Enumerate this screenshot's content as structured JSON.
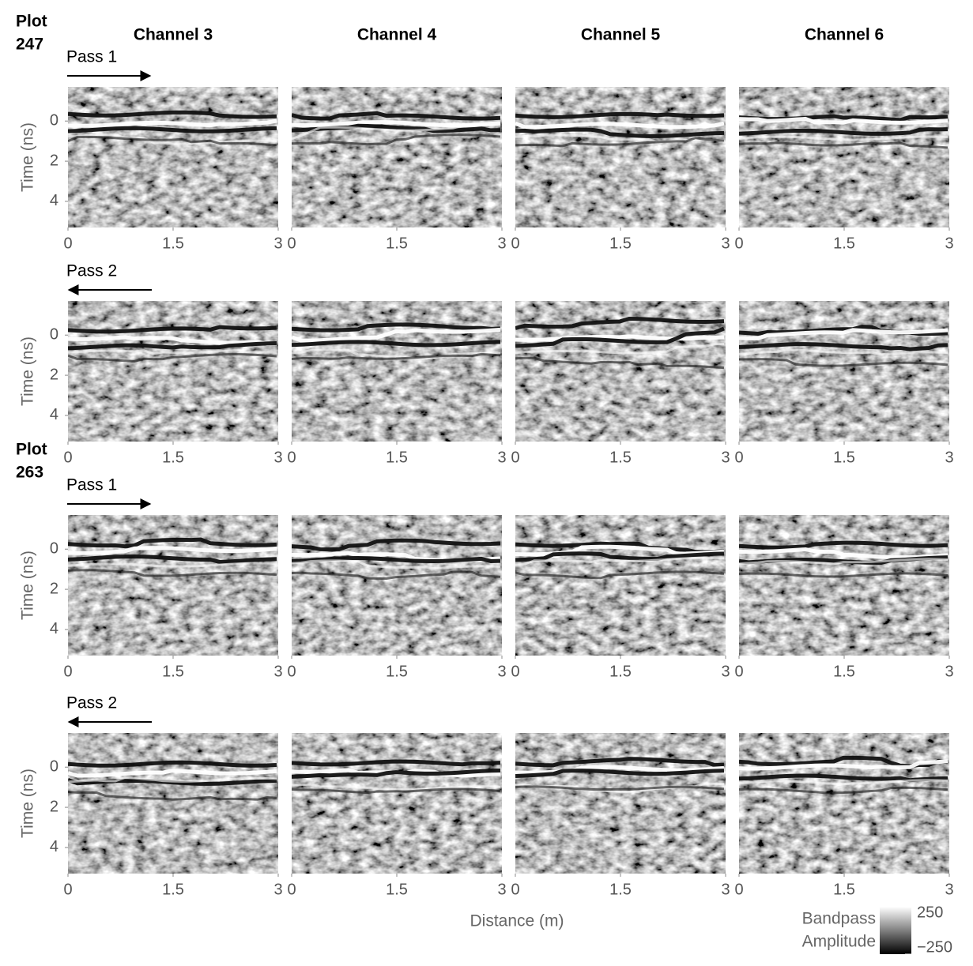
{
  "chart_data": {
    "type": "radargram",
    "columns": [
      "Channel 3",
      "Channel 4",
      "Channel 5",
      "Channel 6"
    ],
    "groups": [
      {
        "label": [
          "Plot",
          "247"
        ],
        "passes": [
          {
            "name": "Pass 1",
            "direction": "right"
          },
          {
            "name": "Pass 2",
            "direction": "left"
          }
        ]
      },
      {
        "label": [
          "Plot",
          "263"
        ],
        "passes": [
          {
            "name": "Pass 1",
            "direction": "right"
          },
          {
            "name": "Pass 2",
            "direction": "left"
          }
        ]
      }
    ],
    "xlabel": "Distance (m)",
    "ylabel": "Time (ns)",
    "xlim": [
      0,
      3
    ],
    "xticks": [
      0,
      1.5,
      3
    ],
    "ylim": [
      -1.7,
      5.3
    ],
    "y_reversed": true,
    "yticks": [
      0,
      2,
      4
    ],
    "colorbar_title": [
      "Bandpass",
      "Amplitude"
    ],
    "clim": [
      -250,
      250
    ],
    "cticks": [
      {
        "value": -250,
        "label": "−250"
      },
      250
    ]
  }
}
